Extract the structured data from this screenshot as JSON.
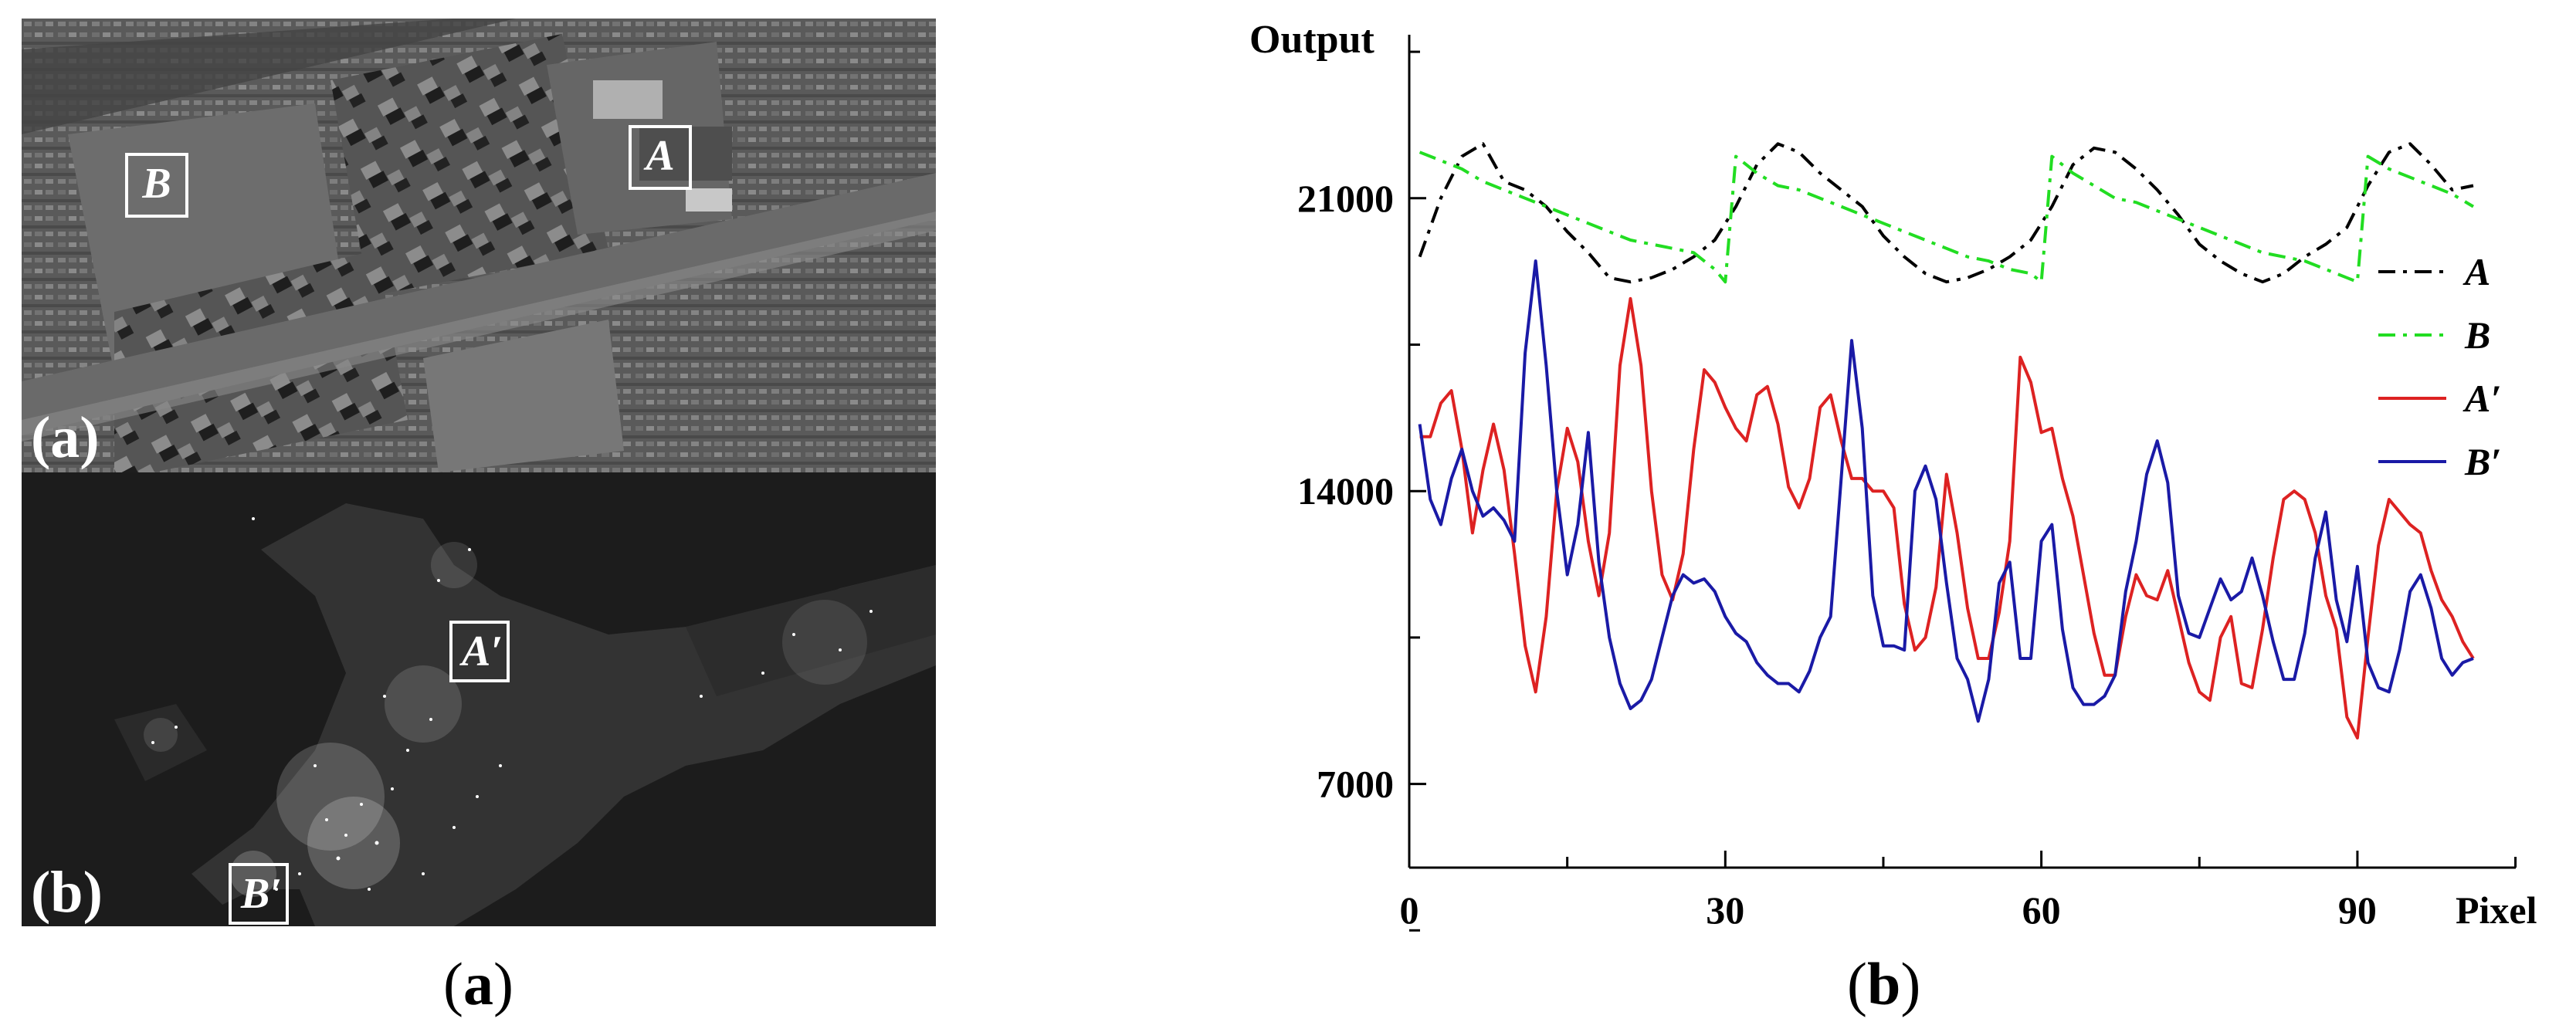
{
  "images": {
    "day": {
      "panel_label": "(a)",
      "roi_a": "A",
      "roi_b": "B"
    },
    "night": {
      "panel_label": "(b)",
      "roi_a": "A′",
      "roi_b": "B′"
    }
  },
  "captions": {
    "left": "a",
    "right": "b"
  },
  "colors": {
    "A": "#000000",
    "B": "#22dd22",
    "A_prime": "#dd2222",
    "B_prime": "#1a1aa6"
  },
  "chart_data": {
    "type": "line",
    "title": "",
    "ylabel": "Output",
    "xlabel": "Pixel",
    "xlim": [
      0,
      101
    ],
    "ylim": [
      5000,
      25000
    ],
    "xticks": [
      0,
      30,
      60,
      90
    ],
    "yticks": [
      7000,
      14000,
      21000
    ],
    "legend_position": "right",
    "series": [
      {
        "name": "A",
        "style": "dash-dot",
        "color": "#000000",
        "points": [
          [
            1,
            19600
          ],
          [
            3,
            21000
          ],
          [
            5,
            22000
          ],
          [
            7,
            22300
          ],
          [
            9,
            21400
          ],
          [
            11,
            21200
          ],
          [
            13,
            20800
          ],
          [
            15,
            20200
          ],
          [
            17,
            19700
          ],
          [
            19,
            19100
          ],
          [
            21,
            19000
          ],
          [
            23,
            19100
          ],
          [
            25,
            19300
          ],
          [
            27,
            19600
          ],
          [
            29,
            20000
          ],
          [
            31,
            20800
          ],
          [
            33,
            21800
          ],
          [
            35,
            22300
          ],
          [
            37,
            22100
          ],
          [
            39,
            21600
          ],
          [
            41,
            21200
          ],
          [
            43,
            20800
          ],
          [
            45,
            20100
          ],
          [
            47,
            19600
          ],
          [
            49,
            19200
          ],
          [
            51,
            19000
          ],
          [
            53,
            19100
          ],
          [
            55,
            19300
          ],
          [
            57,
            19600
          ],
          [
            59,
            20000
          ],
          [
            61,
            20800
          ],
          [
            63,
            21800
          ],
          [
            65,
            22200
          ],
          [
            67,
            22100
          ],
          [
            69,
            21700
          ],
          [
            71,
            21200
          ],
          [
            73,
            20600
          ],
          [
            75,
            19900
          ],
          [
            77,
            19500
          ],
          [
            79,
            19200
          ],
          [
            81,
            19000
          ],
          [
            83,
            19200
          ],
          [
            85,
            19600
          ],
          [
            87,
            19900
          ],
          [
            89,
            20300
          ],
          [
            91,
            21300
          ],
          [
            93,
            22100
          ],
          [
            95,
            22300
          ],
          [
            97,
            21800
          ],
          [
            99,
            21200
          ],
          [
            101,
            21300
          ]
        ]
      },
      {
        "name": "B",
        "style": "dash-dot",
        "color": "#22dd22",
        "points": [
          [
            1,
            22100
          ],
          [
            3,
            21900
          ],
          [
            5,
            21700
          ],
          [
            7,
            21400
          ],
          [
            9,
            21200
          ],
          [
            11,
            21000
          ],
          [
            13,
            20800
          ],
          [
            15,
            20600
          ],
          [
            17,
            20400
          ],
          [
            19,
            20200
          ],
          [
            21,
            20000
          ],
          [
            23,
            19900
          ],
          [
            25,
            19800
          ],
          [
            27,
            19700
          ],
          [
            29,
            19300
          ],
          [
            30,
            19000
          ],
          [
            31,
            22000
          ],
          [
            33,
            21600
          ],
          [
            35,
            21300
          ],
          [
            37,
            21200
          ],
          [
            39,
            21000
          ],
          [
            41,
            20800
          ],
          [
            43,
            20600
          ],
          [
            45,
            20400
          ],
          [
            47,
            20200
          ],
          [
            49,
            20000
          ],
          [
            51,
            19800
          ],
          [
            53,
            19600
          ],
          [
            55,
            19500
          ],
          [
            57,
            19300
          ],
          [
            59,
            19200
          ],
          [
            60,
            19000
          ],
          [
            61,
            22000
          ],
          [
            63,
            21600
          ],
          [
            65,
            21300
          ],
          [
            67,
            21000
          ],
          [
            69,
            20900
          ],
          [
            71,
            20700
          ],
          [
            73,
            20500
          ],
          [
            75,
            20300
          ],
          [
            77,
            20100
          ],
          [
            79,
            19900
          ],
          [
            81,
            19700
          ],
          [
            83,
            19600
          ],
          [
            85,
            19500
          ],
          [
            87,
            19300
          ],
          [
            89,
            19100
          ],
          [
            90,
            19000
          ],
          [
            91,
            22000
          ],
          [
            93,
            21700
          ],
          [
            95,
            21500
          ],
          [
            97,
            21300
          ],
          [
            99,
            21100
          ],
          [
            101,
            20800
          ]
        ]
      },
      {
        "name": "A′",
        "style": "solid",
        "color": "#dd2222",
        "points": [
          [
            1,
            15300
          ],
          [
            2,
            15300
          ],
          [
            3,
            16100
          ],
          [
            4,
            16400
          ],
          [
            5,
            15000
          ],
          [
            6,
            13000
          ],
          [
            7,
            14500
          ],
          [
            8,
            15600
          ],
          [
            9,
            14500
          ],
          [
            10,
            12500
          ],
          [
            11,
            10300
          ],
          [
            12,
            9200
          ],
          [
            13,
            11000
          ],
          [
            14,
            14000
          ],
          [
            15,
            15500
          ],
          [
            16,
            14700
          ],
          [
            17,
            12800
          ],
          [
            18,
            11500
          ],
          [
            19,
            13000
          ],
          [
            20,
            17000
          ],
          [
            21,
            18600
          ],
          [
            22,
            17000
          ],
          [
            23,
            14000
          ],
          [
            24,
            12000
          ],
          [
            25,
            11400
          ],
          [
            26,
            12500
          ],
          [
            27,
            15000
          ],
          [
            28,
            16900
          ],
          [
            29,
            16600
          ],
          [
            30,
            16000
          ],
          [
            31,
            15500
          ],
          [
            32,
            15200
          ],
          [
            33,
            16300
          ],
          [
            34,
            16500
          ],
          [
            35,
            15600
          ],
          [
            36,
            14100
          ],
          [
            37,
            13600
          ],
          [
            38,
            14300
          ],
          [
            39,
            16000
          ],
          [
            40,
            16300
          ],
          [
            41,
            15200
          ],
          [
            42,
            14300
          ],
          [
            43,
            14300
          ],
          [
            44,
            14000
          ],
          [
            45,
            14000
          ],
          [
            46,
            13600
          ],
          [
            47,
            11300
          ],
          [
            48,
            10200
          ],
          [
            49,
            10500
          ],
          [
            50,
            11700
          ],
          [
            51,
            14400
          ],
          [
            52,
            13000
          ],
          [
            53,
            11200
          ],
          [
            54,
            10000
          ],
          [
            55,
            10000
          ],
          [
            56,
            11100
          ],
          [
            57,
            12800
          ],
          [
            58,
            17200
          ],
          [
            59,
            16600
          ],
          [
            60,
            15400
          ],
          [
            61,
            15500
          ],
          [
            62,
            14300
          ],
          [
            63,
            13400
          ],
          [
            64,
            12000
          ],
          [
            65,
            10600
          ],
          [
            66,
            9600
          ],
          [
            67,
            9600
          ],
          [
            68,
            11000
          ],
          [
            69,
            12000
          ],
          [
            70,
            11500
          ],
          [
            71,
            11400
          ],
          [
            72,
            12100
          ],
          [
            73,
            11000
          ],
          [
            74,
            9900
          ],
          [
            75,
            9200
          ],
          [
            76,
            9000
          ],
          [
            77,
            10500
          ],
          [
            78,
            11000
          ],
          [
            79,
            9400
          ],
          [
            80,
            9300
          ],
          [
            81,
            10700
          ],
          [
            82,
            12400
          ],
          [
            83,
            13800
          ],
          [
            84,
            14000
          ],
          [
            85,
            13800
          ],
          [
            86,
            13000
          ],
          [
            87,
            11500
          ],
          [
            88,
            10700
          ],
          [
            89,
            8600
          ],
          [
            90,
            8100
          ],
          [
            91,
            10500
          ],
          [
            92,
            12700
          ],
          [
            93,
            13800
          ],
          [
            94,
            13500
          ],
          [
            95,
            13200
          ],
          [
            96,
            13000
          ],
          [
            97,
            12100
          ],
          [
            98,
            11400
          ],
          [
            99,
            11000
          ],
          [
            100,
            10400
          ],
          [
            101,
            10000
          ]
        ]
      },
      {
        "name": "B′",
        "style": "solid",
        "color": "#1a1aa6",
        "points": [
          [
            1,
            15600
          ],
          [
            2,
            13800
          ],
          [
            3,
            13200
          ],
          [
            4,
            14300
          ],
          [
            5,
            15000
          ],
          [
            6,
            14000
          ],
          [
            7,
            13400
          ],
          [
            8,
            13600
          ],
          [
            9,
            13300
          ],
          [
            10,
            12800
          ],
          [
            11,
            17300
          ],
          [
            12,
            19500
          ],
          [
            13,
            17000
          ],
          [
            14,
            14000
          ],
          [
            15,
            12000
          ],
          [
            16,
            13200
          ],
          [
            17,
            15400
          ],
          [
            18,
            12300
          ],
          [
            19,
            10500
          ],
          [
            20,
            9400
          ],
          [
            21,
            8800
          ],
          [
            22,
            9000
          ],
          [
            23,
            9500
          ],
          [
            24,
            10500
          ],
          [
            25,
            11500
          ],
          [
            26,
            12000
          ],
          [
            27,
            11800
          ],
          [
            28,
            11900
          ],
          [
            29,
            11600
          ],
          [
            30,
            11000
          ],
          [
            31,
            10600
          ],
          [
            32,
            10400
          ],
          [
            33,
            9900
          ],
          [
            34,
            9600
          ],
          [
            35,
            9400
          ],
          [
            36,
            9400
          ],
          [
            37,
            9200
          ],
          [
            38,
            9700
          ],
          [
            39,
            10500
          ],
          [
            40,
            11000
          ],
          [
            41,
            14300
          ],
          [
            42,
            17600
          ],
          [
            43,
            15500
          ],
          [
            44,
            11500
          ],
          [
            45,
            10300
          ],
          [
            46,
            10300
          ],
          [
            47,
            10200
          ],
          [
            48,
            14000
          ],
          [
            49,
            14600
          ],
          [
            50,
            13800
          ],
          [
            51,
            11800
          ],
          [
            52,
            10000
          ],
          [
            53,
            9500
          ],
          [
            54,
            8500
          ],
          [
            55,
            9500
          ],
          [
            56,
            11800
          ],
          [
            57,
            12300
          ],
          [
            58,
            10000
          ],
          [
            59,
            10000
          ],
          [
            60,
            12800
          ],
          [
            61,
            13200
          ],
          [
            62,
            10700
          ],
          [
            63,
            9300
          ],
          [
            64,
            8900
          ],
          [
            65,
            8900
          ],
          [
            66,
            9100
          ],
          [
            67,
            9600
          ],
          [
            68,
            11600
          ],
          [
            69,
            12800
          ],
          [
            70,
            14400
          ],
          [
            71,
            15200
          ],
          [
            72,
            14200
          ],
          [
            73,
            11500
          ],
          [
            74,
            10600
          ],
          [
            75,
            10500
          ],
          [
            76,
            11200
          ],
          [
            77,
            11900
          ],
          [
            78,
            11400
          ],
          [
            79,
            11600
          ],
          [
            80,
            12400
          ],
          [
            81,
            11500
          ],
          [
            82,
            10400
          ],
          [
            83,
            9500
          ],
          [
            84,
            9500
          ],
          [
            85,
            10600
          ],
          [
            86,
            12400
          ],
          [
            87,
            13500
          ],
          [
            88,
            11400
          ],
          [
            89,
            10400
          ],
          [
            90,
            12200
          ],
          [
            91,
            9900
          ],
          [
            92,
            9300
          ],
          [
            93,
            9200
          ],
          [
            94,
            10200
          ],
          [
            95,
            11600
          ],
          [
            96,
            12000
          ],
          [
            97,
            11200
          ],
          [
            98,
            10000
          ],
          [
            99,
            9600
          ],
          [
            100,
            9900
          ],
          [
            101,
            10000
          ]
        ]
      }
    ]
  }
}
